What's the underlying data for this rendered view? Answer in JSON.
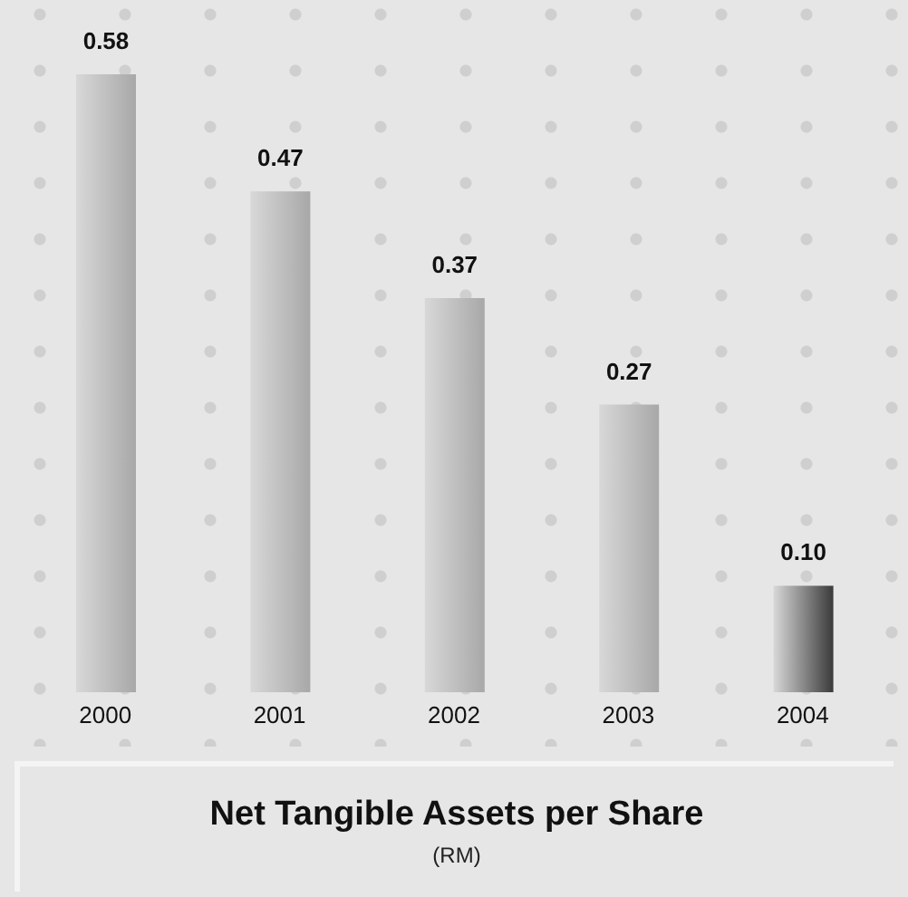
{
  "chart_data": {
    "type": "bar",
    "title": "Net Tangible Assets per Share",
    "subtitle": "(RM)",
    "categories": [
      "2000",
      "2001",
      "2002",
      "2003",
      "2004"
    ],
    "values": [
      0.58,
      0.47,
      0.37,
      0.27,
      0.1
    ],
    "value_labels": [
      "0.58",
      "0.47",
      "0.37",
      "0.27",
      "0.10"
    ],
    "colors": [
      "#a8a8a8",
      "#a8a8a8",
      "#a8a8a8",
      "#a8a8a8",
      "#3a3a3a"
    ]
  }
}
